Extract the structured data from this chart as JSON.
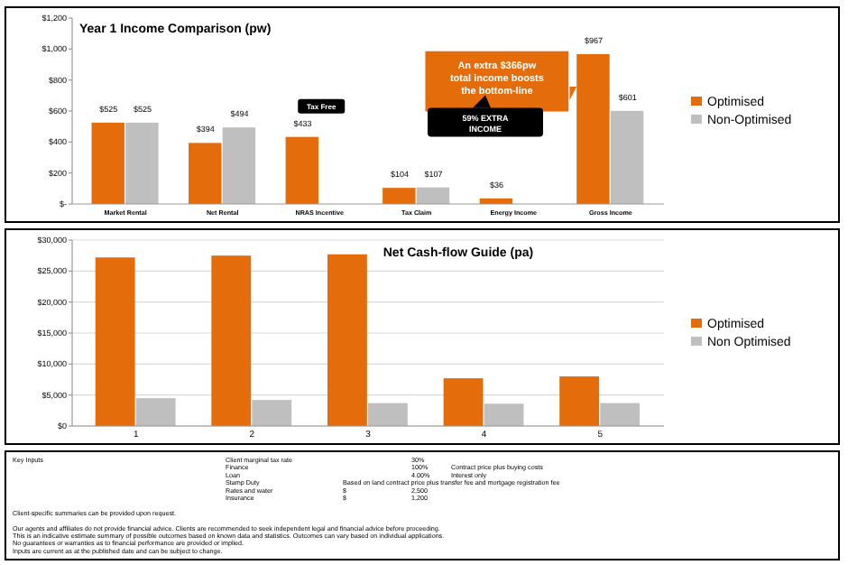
{
  "chart_data": [
    {
      "type": "bar",
      "title": "Year 1 Income Comparison (pw)",
      "categories": [
        "Market Rental",
        "Net Rental",
        "NRAS Incentive",
        "Tax Claim",
        "Energy Income",
        "Gross Income"
      ],
      "series": [
        {
          "name": "Optimised",
          "color": "#e46c0a",
          "values": [
            525,
            394,
            433,
            104,
            36,
            967
          ],
          "value_labels": [
            "$525",
            "$394",
            "$433",
            "$104",
            "$36",
            "$967"
          ]
        },
        {
          "name": "Non-Optimised",
          "color": "#bfbfbf",
          "values": [
            525,
            494,
            null,
            107,
            null,
            601
          ],
          "value_labels": [
            "$525",
            "$494",
            null,
            "$107",
            null,
            "$601"
          ]
        }
      ],
      "ylim": [
        0,
        1200
      ],
      "yticks": [
        {
          "value": 0,
          "label": "$-"
        },
        {
          "value": 200,
          "label": "$200"
        },
        {
          "value": 400,
          "label": "$400"
        },
        {
          "value": 600,
          "label": "$600"
        },
        {
          "value": 800,
          "label": "$800"
        },
        {
          "value": 1000,
          "label": "$1,000"
        },
        {
          "value": 1200,
          "label": "$1,200"
        }
      ],
      "grid": false,
      "legend": "right",
      "annotations": [
        "Tax Free",
        "An extra $366pw total income boosts the bottom-line",
        "59% EXTRA INCOME"
      ]
    },
    {
      "type": "bar",
      "title": "Net Cash-flow Guide (pa)",
      "categories": [
        "1",
        "2",
        "3",
        "4",
        "5"
      ],
      "series": [
        {
          "name": "Optimised",
          "color": "#e46c0a",
          "values": [
            27200,
            27500,
            27700,
            7700,
            8000
          ]
        },
        {
          "name": "Non Optimised",
          "color": "#bfbfbf",
          "values": [
            4500,
            4200,
            3700,
            3600,
            3700
          ]
        }
      ],
      "ylim": [
        0,
        30000
      ],
      "yticks": [
        {
          "value": 0,
          "label": "$0"
        },
        {
          "value": 5000,
          "label": "$5,000"
        },
        {
          "value": 10000,
          "label": "$10,000"
        },
        {
          "value": 15000,
          "label": "$15,000"
        },
        {
          "value": 20000,
          "label": "$20,000"
        },
        {
          "value": 25000,
          "label": "$25,000"
        },
        {
          "value": 30000,
          "label": "$30,000"
        }
      ],
      "grid": "y",
      "legend": "right"
    },
    {
      "type": "other",
      "annotations": [
        "Key Inputs\tClient marginal tax rate\t\t30%",
        "\tFinance\t\t100%\tContract price plus buying costs",
        "\tLoan\t\t4.00%\tInterest only",
        "\tStamp Duty\tBased on land contract price plus transfer fee and mortgage registration fee",
        "\tRates and water\t$\t2,500",
        "\tInsurance\t$\t1,200",
        "Client-specific summaries can be provided upon request.",
        "Our agents and affiliates do not provide financial advice. Clients are recommended to seek independent legal and financial advice before proceeding.",
        "This is an indicative estimate summary of possible outcomes based on known data and statistics. Outcomes can vary based on individual applications.",
        "No guarantees or warranties as to financial performance are provided or implied.",
        "Inputs are current as at the published date and can be subject to change."
      ]
    }
  ]
}
